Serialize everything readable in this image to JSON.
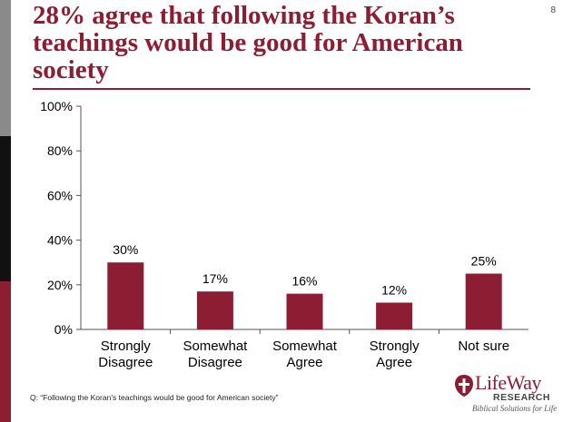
{
  "slide": {
    "title": "28% agree that following the Koran’s teachings would be good for American society",
    "number": "8",
    "footnote": "Q: “Following the Koran’s teachings would be good for American society”",
    "logo": {
      "name": "LifeWay",
      "sub": "RESEARCH",
      "tagline": "Biblical Solutions for Life"
    }
  },
  "colors": {
    "accent": "#8c1d32",
    "bar": "#8c1d32"
  },
  "chart_data": {
    "type": "bar",
    "categories": [
      [
        "Strongly",
        "Disagree"
      ],
      [
        "Somewhat",
        "Disagree"
      ],
      [
        "Somewhat",
        "Agree"
      ],
      [
        "Strongly",
        "Agree"
      ],
      [
        "Not sure"
      ]
    ],
    "values": [
      30,
      17,
      16,
      12,
      25
    ],
    "value_labels": [
      "30%",
      "17%",
      "16%",
      "12%",
      "25%"
    ],
    "ylim": [
      0,
      100
    ],
    "yticks": [
      0,
      20,
      40,
      60,
      80,
      100
    ],
    "ytick_labels": [
      "0%",
      "20%",
      "40%",
      "60%",
      "80%",
      "100%"
    ],
    "grid": false,
    "legend": "none"
  }
}
